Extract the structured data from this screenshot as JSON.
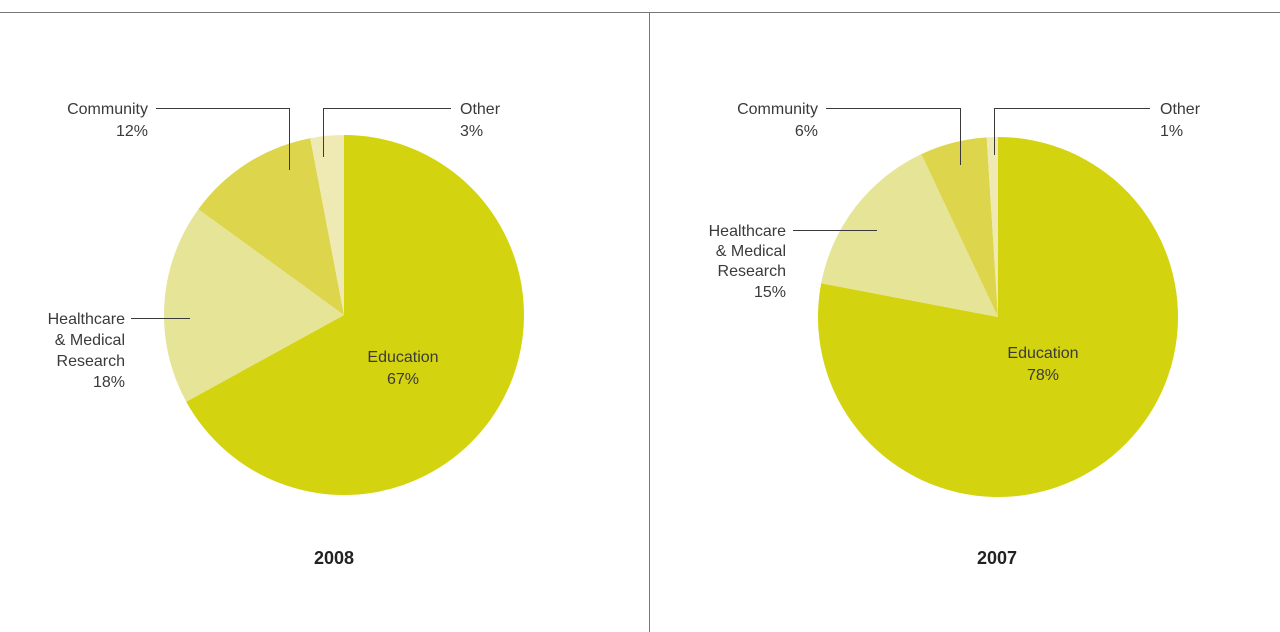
{
  "chart_data": [
    {
      "type": "pie",
      "title": "2008",
      "categories": [
        "Education",
        "Healthcare & Medical Research",
        "Community",
        "Other"
      ],
      "values": [
        67,
        18,
        12,
        3
      ],
      "labels": [
        [
          "Education",
          "67%"
        ],
        [
          "Healthcare",
          "& Medical",
          "Research",
          "18%"
        ],
        [
          "Community",
          "12%"
        ],
        [
          "Other",
          "3%"
        ]
      ],
      "colors": [
        "#d4d310",
        "#e6e497",
        "#ddd64c",
        "#efeab4"
      ]
    },
    {
      "type": "pie",
      "title": "2007",
      "categories": [
        "Education",
        "Healthcare & Medical Research",
        "Community",
        "Other"
      ],
      "values": [
        78,
        15,
        6,
        1
      ],
      "labels": [
        [
          "Education",
          "78%"
        ],
        [
          "Healthcare",
          "& Medical",
          "Research",
          "15%"
        ],
        [
          "Community",
          "6%"
        ],
        [
          "Other",
          "1%"
        ]
      ],
      "colors": [
        "#d4d310",
        "#e6e497",
        "#ddd64c",
        "#efeab4"
      ]
    }
  ]
}
